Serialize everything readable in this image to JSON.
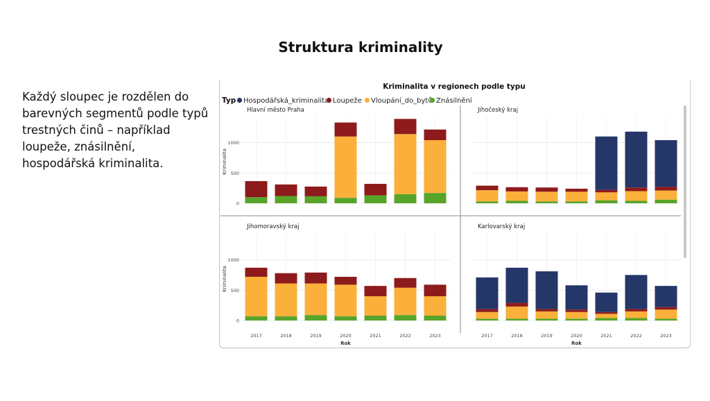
{
  "slide": {
    "title": "Struktura kriminality",
    "description": "Každý sloupec je rozdělen do barevných segmentů podle typů trestných činů – například loupeže, znásilnění, hospodářská kriminalita."
  },
  "colors": {
    "Hospodářská_kriminalita": "#253668",
    "Loupeže": "#8e1b1b",
    "Vloupání_do_bytů": "#fbb03b",
    "Znásilnění": "#58a42b"
  },
  "chart_data": {
    "type": "bar",
    "stacked": true,
    "title": "Kriminalita v regionech podle typu",
    "legend_title": "Typ",
    "legend_position": "top-left",
    "xlabel": "Rok",
    "ylabel": "Kriminalita",
    "ylim": [
      0,
      1400
    ],
    "yticks": [
      0,
      500,
      1000
    ],
    "categories": [
      "2017",
      "2018",
      "2019",
      "2020",
      "2021",
      "2022",
      "2023"
    ],
    "series_names": [
      "Hospodářská_kriminalita",
      "Loupeže",
      "Vloupání_do_bytů",
      "Znásilnění"
    ],
    "panels": [
      {
        "name": "Hlavní město Praha",
        "series": [
          {
            "name": "Znásilnění",
            "values": [
              100,
              120,
              115,
              90,
              130,
              150,
              170
            ]
          },
          {
            "name": "Vloupání_do_bytů",
            "values": [
              0,
              0,
              0,
              1010,
              0,
              990,
              870
            ]
          },
          {
            "name": "Loupeže",
            "values": [
              265,
              190,
              160,
              230,
              190,
              250,
              175
            ]
          },
          {
            "name": "Hospodářská_kriminalita",
            "values": [
              0,
              0,
              0,
              0,
              0,
              0,
              0
            ]
          }
        ]
      },
      {
        "name": "Jihočeský kraj",
        "series": [
          {
            "name": "Znásilnění",
            "values": [
              30,
              40,
              30,
              30,
              50,
              40,
              60
            ]
          },
          {
            "name": "Vloupání_do_bytů",
            "values": [
              185,
              155,
              160,
              160,
              130,
              160,
              150
            ]
          },
          {
            "name": "Loupeže",
            "values": [
              75,
              70,
              70,
              50,
              40,
              60,
              60
            ]
          },
          {
            "name": "Hospodářská_kriminalita",
            "values": [
              0,
              0,
              0,
              0,
              880,
              920,
              770
            ]
          }
        ]
      },
      {
        "name": "Jihomoravský kraj",
        "series": [
          {
            "name": "Znásilnění",
            "values": [
              70,
              70,
              90,
              70,
              80,
              90,
              80
            ]
          },
          {
            "name": "Vloupání_do_bytů",
            "values": [
              650,
              540,
              520,
              520,
              320,
              450,
              320
            ]
          },
          {
            "name": "Loupeže",
            "values": [
              150,
              170,
              180,
              130,
              170,
              160,
              190
            ]
          },
          {
            "name": "Hospodářská_kriminalita",
            "values": [
              0,
              0,
              0,
              0,
              0,
              0,
              0
            ]
          }
        ]
      },
      {
        "name": "Karlovarský kraj",
        "series": [
          {
            "name": "Znásilnění",
            "values": [
              30,
              30,
              30,
              30,
              40,
              40,
              30
            ]
          },
          {
            "name": "Vloupání_do_bytů",
            "values": [
              110,
              200,
              120,
              110,
              70,
              110,
              150
            ]
          },
          {
            "name": "Loupeže",
            "values": [
              50,
              60,
              40,
              40,
              30,
              40,
              40
            ]
          },
          {
            "name": "Hospodářská_kriminalita",
            "values": [
              520,
              580,
              620,
              400,
              320,
              560,
              350
            ]
          }
        ]
      }
    ]
  }
}
